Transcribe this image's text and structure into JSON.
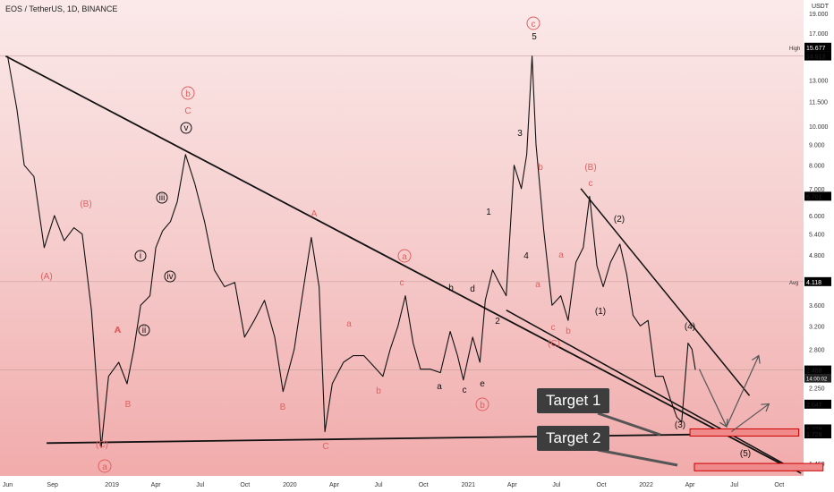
{
  "chart_data": {
    "type": "line",
    "title": "EOS / TetherUS, 1D, BINANCE",
    "currency": "USDT",
    "y_scale": "log",
    "ylim": [
      1.4,
      19.0
    ],
    "y_ticks": [
      "19.000",
      "17.000",
      "15.677",
      "13.000",
      "11.500",
      "10.000",
      "9.000",
      "8.000",
      "7.000",
      "6.000",
      "5.400",
      "4.800",
      "3.600",
      "3.200",
      "2.800",
      "2.250",
      "1.460"
    ],
    "x_ticks": [
      "Jun",
      "Sep",
      "2019",
      "Apr",
      "Jul",
      "Oct",
      "2020",
      "Apr",
      "Jul",
      "Oct",
      "2021",
      "Apr",
      "Jul",
      "Oct",
      "2022",
      "Apr",
      "Jul",
      "Oct"
    ],
    "price_labels": [
      {
        "label": "High",
        "value": "15.677"
      },
      {
        "value": "14.913"
      },
      {
        "value": "6.701"
      },
      {
        "label": "Avg",
        "value": "4.118"
      },
      {
        "value": "2.488",
        "sub": "14:00:02"
      },
      {
        "value": "2.047"
      },
      {
        "value": "1.778"
      },
      {
        "value": "1.728"
      }
    ],
    "series": [
      {
        "values": [
          [
            "2018-06-01",
            14.9
          ],
          [
            "2018-06-20",
            11.0
          ],
          [
            "2018-07-05",
            8.0
          ],
          [
            "2018-07-25",
            7.5
          ],
          [
            "2018-08-15",
            5.0
          ],
          [
            "2018-09-05",
            6.0
          ],
          [
            "2018-09-25",
            5.2
          ],
          [
            "2018-10-15",
            5.6
          ],
          [
            "2018-11-01",
            5.4
          ],
          [
            "2018-11-20",
            3.5
          ],
          [
            "2018-12-10",
            1.6
          ],
          [
            "2018-12-25",
            2.4
          ],
          [
            "2019-01-15",
            2.6
          ],
          [
            "2019-02-01",
            2.3
          ],
          [
            "2019-02-15",
            2.8
          ],
          [
            "2019-03-01",
            3.6
          ],
          [
            "2019-03-20",
            3.8
          ],
          [
            "2019-04-01",
            5.0
          ],
          [
            "2019-04-15",
            5.5
          ],
          [
            "2019-05-01",
            5.8
          ],
          [
            "2019-05-15",
            6.5
          ],
          [
            "2019-06-01",
            8.5
          ],
          [
            "2019-06-20",
            7.2
          ],
          [
            "2019-07-10",
            5.8
          ],
          [
            "2019-07-30",
            4.4
          ],
          [
            "2019-08-20",
            4.0
          ],
          [
            "2019-09-10",
            4.1
          ],
          [
            "2019-09-30",
            3.0
          ],
          [
            "2019-10-20",
            3.3
          ],
          [
            "2019-11-10",
            3.7
          ],
          [
            "2019-12-01",
            3.0
          ],
          [
            "2019-12-18",
            2.2
          ],
          [
            "2020-01-10",
            2.8
          ],
          [
            "2020-01-25",
            3.7
          ],
          [
            "2020-02-14",
            5.3
          ],
          [
            "2020-03-01",
            4.0
          ],
          [
            "2020-03-13",
            1.75
          ],
          [
            "2020-03-28",
            2.3
          ],
          [
            "2020-04-20",
            2.6
          ],
          [
            "2020-05-10",
            2.7
          ],
          [
            "2020-06-01",
            2.7
          ],
          [
            "2020-06-20",
            2.55
          ],
          [
            "2020-07-10",
            2.4
          ],
          [
            "2020-07-25",
            2.8
          ],
          [
            "2020-08-10",
            3.2
          ],
          [
            "2020-08-25",
            3.8
          ],
          [
            "2020-09-10",
            2.9
          ],
          [
            "2020-09-25",
            2.5
          ],
          [
            "2020-10-15",
            2.5
          ],
          [
            "2020-11-05",
            2.45
          ],
          [
            "2020-11-25",
            3.1
          ],
          [
            "2020-12-10",
            2.7
          ],
          [
            "2020-12-22",
            2.35
          ],
          [
            "2021-01-10",
            3.0
          ],
          [
            "2021-01-25",
            2.6
          ],
          [
            "2021-02-05",
            3.7
          ],
          [
            "2021-02-20",
            4.4
          ],
          [
            "2021-03-05",
            4.1
          ],
          [
            "2021-03-20",
            3.8
          ],
          [
            "2021-04-05",
            8.0
          ],
          [
            "2021-04-20",
            7.0
          ],
          [
            "2021-05-01",
            8.5
          ],
          [
            "2021-05-12",
            14.9
          ],
          [
            "2021-05-20",
            9.0
          ],
          [
            "2021-06-05",
            5.5
          ],
          [
            "2021-06-22",
            3.6
          ],
          [
            "2021-07-10",
            3.8
          ],
          [
            "2021-07-25",
            3.3
          ],
          [
            "2021-08-10",
            4.6
          ],
          [
            "2021-08-25",
            5.0
          ],
          [
            "2021-09-07",
            6.7
          ],
          [
            "2021-09-22",
            4.5
          ],
          [
            "2021-10-05",
            4.0
          ],
          [
            "2021-10-20",
            4.6
          ],
          [
            "2021-11-08",
            5.1
          ],
          [
            "2021-11-22",
            4.3
          ],
          [
            "2021-12-05",
            3.4
          ],
          [
            "2021-12-20",
            3.2
          ],
          [
            "2022-01-05",
            3.3
          ],
          [
            "2022-01-20",
            2.4
          ],
          [
            "2022-02-05",
            2.4
          ],
          [
            "2022-02-20",
            2.1
          ],
          [
            "2022-03-05",
            1.9
          ],
          [
            "2022-03-15",
            1.85
          ],
          [
            "2022-03-28",
            2.9
          ],
          [
            "2022-04-05",
            2.8
          ],
          [
            "2022-04-12",
            2.49
          ]
        ]
      }
    ],
    "projections": [
      {
        "from": [
          "2022-04-20",
          2.5
        ],
        "to": [
          "2022-06-15",
          1.8
        ]
      },
      {
        "from": [
          "2022-06-15",
          1.8
        ],
        "to": [
          "2022-08-20",
          2.7
        ]
      },
      {
        "from": [
          "2022-06-25",
          1.75
        ],
        "to": [
          "2022-09-10",
          2.05
        ]
      }
    ],
    "annotations": [
      "(A)",
      "(B)",
      "(C)",
      "A",
      "B",
      "C",
      "a",
      "b",
      "c",
      "d",
      "e",
      "(1)",
      "(2)",
      "(3)",
      "(4)",
      "(5)",
      "1",
      "2",
      "3",
      "4",
      "5",
      "i",
      "ii",
      "iii",
      "iv",
      "v"
    ],
    "targets": [
      {
        "label": "Target 1",
        "low": 1.728,
        "high": 1.778
      },
      {
        "label": "Target 2",
        "low": 1.4,
        "high": 1.46
      }
    ]
  },
  "ui": {
    "target1": "Target 1",
    "target2": "Target 2"
  }
}
